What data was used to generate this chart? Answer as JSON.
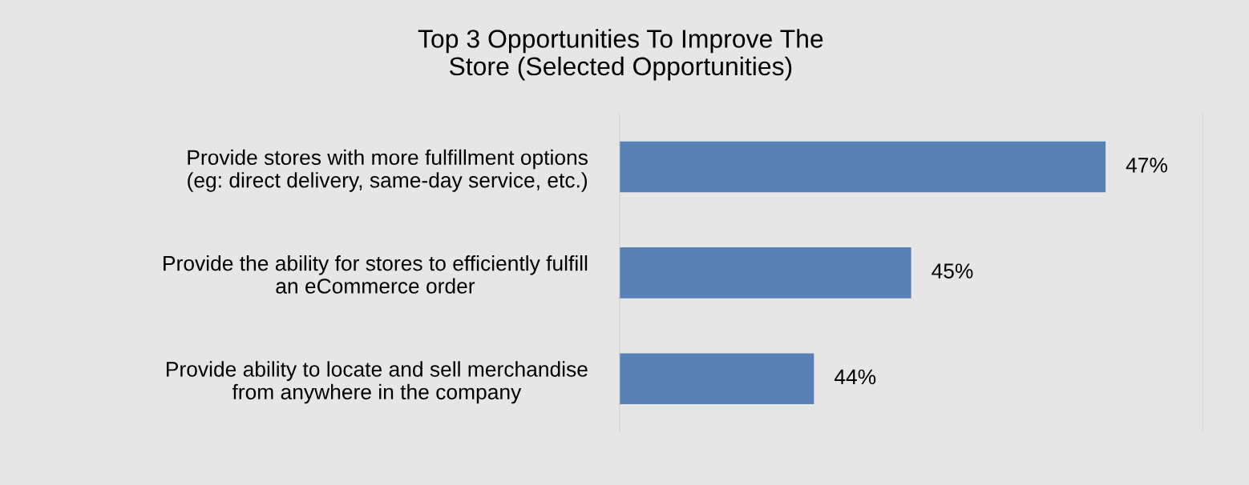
{
  "chart_data": {
    "type": "bar",
    "orientation": "horizontal",
    "title": "Top 3 Opportunities To Improve The\nStore (Selected Opportunities)",
    "categories": [
      "Provide stores with more fulfillment options\n(eg: direct delivery, same-day service, etc.)",
      "Provide the ability for stores to efficiently fulfill\nan eCommerce order",
      "Provide ability to locate and sell merchandise\nfrom anywhere in the company"
    ],
    "values": [
      47,
      45,
      44
    ],
    "color": "#5a80b8",
    "value_labels": [
      "47%",
      "45%",
      "44%"
    ],
    "xlim": [
      42,
      48
    ],
    "tick_labels": "y",
    "grid": false,
    "legend": false
  }
}
